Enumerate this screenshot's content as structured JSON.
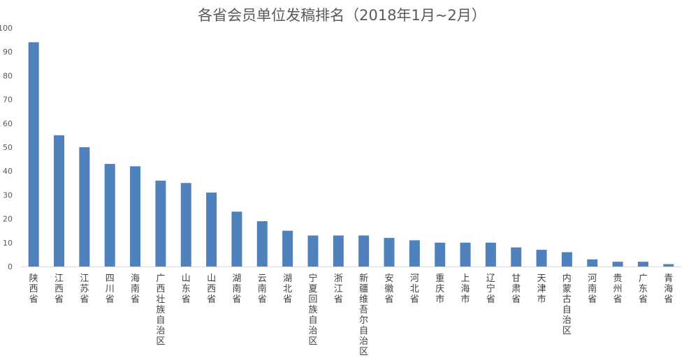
{
  "chart_data": {
    "type": "bar",
    "title": "各省会员单位发稿排名（2018年1月~2月）",
    "xlabel": "",
    "ylabel": "",
    "ylim": [
      0,
      100
    ],
    "yticks": [
      0,
      10,
      20,
      30,
      40,
      50,
      60,
      70,
      80,
      90,
      100
    ],
    "grid": false,
    "legend": "none",
    "bar_color": "#4f81bd",
    "categories": [
      "陕西省",
      "江西省",
      "江苏省",
      "四川省",
      "海南省",
      "广西壮族自治区",
      "山东省",
      "山西省",
      "湖南省",
      "云南省",
      "湖北省",
      "宁夏回族自治区",
      "浙江省",
      "新疆维吾尔自治区",
      "安徽省",
      "河北省",
      "重庆市",
      "上海市",
      "辽宁省",
      "甘肃省",
      "天津市",
      "内蒙古自治区",
      "河南省",
      "贵州省",
      "广东省",
      "青海省"
    ],
    "values": [
      94,
      55,
      50,
      43,
      42,
      36,
      35,
      31,
      23,
      19,
      15,
      13,
      13,
      13,
      12,
      11,
      10,
      10,
      10,
      8,
      7,
      6,
      3,
      2,
      2,
      1
    ]
  }
}
